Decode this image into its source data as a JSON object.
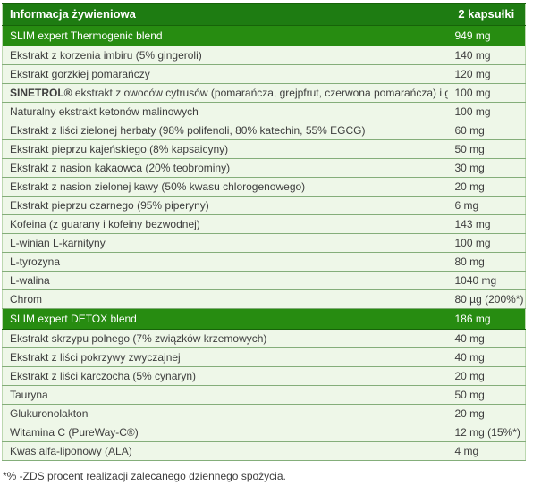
{
  "table": {
    "header": {
      "label": "Informacja żywieniowa",
      "value": "2 kapsułki"
    },
    "rows": [
      {
        "type": "section",
        "label": "SLIM expert Thermogenic blend",
        "value": "949 mg"
      },
      {
        "type": "data",
        "label": "Ekstrakt z korzenia imbiru (5% gingeroli)",
        "value": "140 mg"
      },
      {
        "type": "data",
        "label": "Ekstrakt gorzkiej pomarańczy",
        "value": "120 mg"
      },
      {
        "type": "data",
        "bold_prefix": "SINETROL®",
        "label": " ekstrakt z owoców cytrusów (pomarańcza, grejpfrut, czerwona pomarańcza) i guarany",
        "value": "100 mg"
      },
      {
        "type": "data",
        "label": "Naturalny ekstrakt ketonów malinowych",
        "value": "100 mg"
      },
      {
        "type": "data",
        "label": "Ekstrakt z liści zielonej herbaty (98% polifenoli, 80% katechin, 55% EGCG)",
        "value": "60 mg"
      },
      {
        "type": "data",
        "label": "Ekstrakt pieprzu kajeńskiego (8% kapsaicyny)",
        "value": "50 mg"
      },
      {
        "type": "data",
        "label": "Ekstrakt z nasion kakaowca (20% teobrominy)",
        "value": "30 mg"
      },
      {
        "type": "data",
        "label": "Ekstrakt z nasion zielonej kawy (50% kwasu chlorogenowego)",
        "value": "20 mg"
      },
      {
        "type": "data",
        "label": "Ekstrakt pieprzu czarnego (95% piperyny)",
        "value": "6 mg"
      },
      {
        "type": "data",
        "label": "Kofeina (z guarany i kofeiny bezwodnej)",
        "value": "143 mg"
      },
      {
        "type": "data",
        "label": "L-winian L-karnityny",
        "value": "100 mg"
      },
      {
        "type": "data",
        "label": "L-tyrozyna",
        "value": "80 mg"
      },
      {
        "type": "data",
        "label": "L-walina",
        "value": "1040 mg"
      },
      {
        "type": "data",
        "label": "Chrom",
        "value": "80 µg (200%*)"
      },
      {
        "type": "section",
        "label": "SLIM expert DETOX blend",
        "value": "186 mg"
      },
      {
        "type": "data",
        "label": "Ekstrakt skrzypu polnego (7% związków krzemowych)",
        "value": "40 mg"
      },
      {
        "type": "data",
        "label": "Ekstrakt z liści pokrzywy zwyczajnej",
        "value": "40 mg"
      },
      {
        "type": "data",
        "label": "Ekstrakt z liści karczocha (5% cynaryn)",
        "value": "20 mg"
      },
      {
        "type": "data",
        "label": "Tauryna",
        "value": "50 mg"
      },
      {
        "type": "data",
        "label": "Glukuronolakton",
        "value": "20 mg"
      },
      {
        "type": "data",
        "label": "Witamina C (PureWay-C®)",
        "value": "12 mg (15%*)"
      },
      {
        "type": "data",
        "label": "Kwas alfa-liponowy (ALA)",
        "value": "4 mg"
      }
    ],
    "footnote": "*% -ZDS procent realizacji zalecanego dziennego spożycia."
  },
  "colors": {
    "green_header": "#1e7c12",
    "green_section": "#278c11",
    "green_dark_border": "#176309",
    "row_bg": "#eef7e8",
    "divider": "#84ae7a",
    "side_border": "#bcd8b0",
    "text": "#3d3d3d"
  }
}
